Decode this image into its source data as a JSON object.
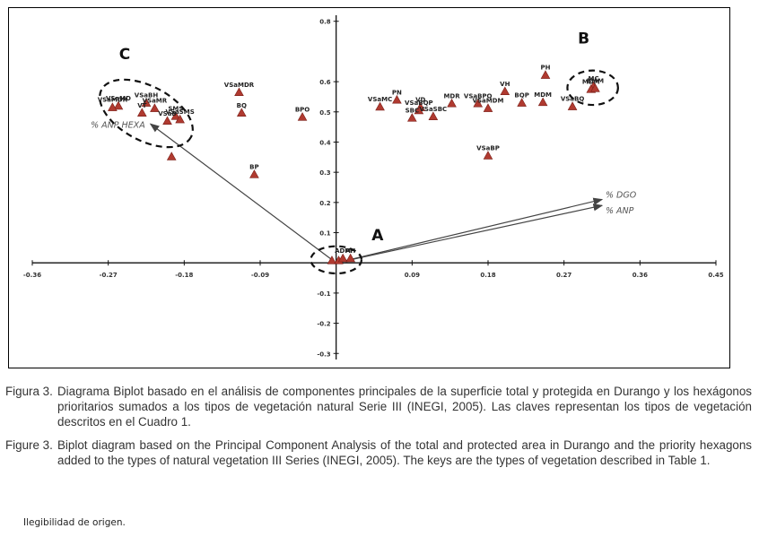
{
  "chart_data": {
    "type": "scatter",
    "subtype": "biplot",
    "xlim": [
      -0.36,
      0.45
    ],
    "ylim": [
      -0.32,
      0.82
    ],
    "x_ticks": [
      "-0.36",
      "-0.27",
      "-0.18",
      "-0.09",
      "0.09",
      "0.18",
      "0.27",
      "0.36",
      "0.45"
    ],
    "x_tick_values": [
      -0.36,
      -0.27,
      -0.18,
      -0.09,
      0.09,
      0.18,
      0.27,
      0.36,
      0.45
    ],
    "y_ticks": [
      "0.8",
      "0.6",
      "0.5",
      "0.4",
      "0.3",
      "0.2",
      "0.1",
      "-0.1",
      "-0.2",
      "-0.3"
    ],
    "y_tick_values": [
      0.8,
      0.6,
      0.5,
      0.4,
      0.3,
      0.2,
      0.1,
      -0.1,
      -0.2,
      -0.3
    ],
    "points": [
      {
        "label": "VSaMDR",
        "x": -0.115,
        "y": 0.565
      },
      {
        "label": "BQ",
        "x": -0.112,
        "y": 0.497
      },
      {
        "label": "BP",
        "x": -0.097,
        "y": 0.293
      },
      {
        "label": "BPO",
        "x": -0.04,
        "y": 0.483
      },
      {
        "label": "VSaBH",
        "x": -0.225,
        "y": 0.53
      },
      {
        "label": "VSaMR",
        "x": -0.215,
        "y": 0.512
      },
      {
        "label": "VT",
        "x": -0.23,
        "y": 0.497
      },
      {
        "label": "SMS",
        "x": -0.19,
        "y": 0.486
      },
      {
        "label": "VSaSMS",
        "x": -0.185,
        "y": 0.475
      },
      {
        "label": "VSaB",
        "x": -0.2,
        "y": 0.47
      },
      {
        "label": "VSaMD",
        "x": -0.258,
        "y": 0.52
      },
      {
        "label": "VSaMDR",
        "x": -0.265,
        "y": 0.515
      },
      {
        "label": "",
        "x": -0.195,
        "y": 0.352
      },
      {
        "label": "PN",
        "x": 0.072,
        "y": 0.54
      },
      {
        "label": "VSaMC",
        "x": 0.052,
        "y": 0.517
      },
      {
        "label": "VD",
        "x": 0.1,
        "y": 0.515
      },
      {
        "label": "VSaBQP",
        "x": 0.098,
        "y": 0.505
      },
      {
        "label": "SBC",
        "x": 0.09,
        "y": 0.48
      },
      {
        "label": "VSaSBC",
        "x": 0.115,
        "y": 0.485
      },
      {
        "label": "MDR",
        "x": 0.137,
        "y": 0.528
      },
      {
        "label": "VSaBPO",
        "x": 0.168,
        "y": 0.528
      },
      {
        "label": "VSaMDM",
        "x": 0.18,
        "y": 0.512
      },
      {
        "label": "VSaBP",
        "x": 0.18,
        "y": 0.355
      },
      {
        "label": "VH",
        "x": 0.2,
        "y": 0.568
      },
      {
        "label": "BQP",
        "x": 0.22,
        "y": 0.53
      },
      {
        "label": "MDM",
        "x": 0.245,
        "y": 0.532
      },
      {
        "label": "VSaBQ",
        "x": 0.28,
        "y": 0.518
      },
      {
        "label": "PH",
        "x": 0.248,
        "y": 0.622
      },
      {
        "label": "MC",
        "x": 0.305,
        "y": 0.585
      },
      {
        "label": "MDM",
        "x": 0.302,
        "y": 0.575
      },
      {
        "label": "BMM",
        "x": 0.307,
        "y": 0.578
      },
      {
        "label": "",
        "x": -0.005,
        "y": 0.008
      },
      {
        "label": "",
        "x": 0.003,
        "y": 0.008
      },
      {
        "label": "ADM",
        "x": 0.008,
        "y": 0.015
      },
      {
        "label": "AH",
        "x": 0.017,
        "y": 0.015
      }
    ],
    "vectors": [
      {
        "label": "% ANP HEXA",
        "x": -0.22,
        "y": 0.46
      },
      {
        "label": "% DGO",
        "x": 0.315,
        "y": 0.21
      },
      {
        "label": "% ANP",
        "x": 0.315,
        "y": 0.19
      }
    ],
    "groups": [
      {
        "label": "A",
        "cx": 0.0,
        "cy": 0.01,
        "rx": 0.03,
        "ry": 0.045
      },
      {
        "label": "B",
        "cx": 0.304,
        "cy": 0.58,
        "rx": 0.03,
        "ry": 0.057
      },
      {
        "label": "C",
        "cx": -0.225,
        "cy": 0.495,
        "rx": 0.06,
        "ry": 0.09
      }
    ]
  },
  "caption_es": {
    "label": "Figura 3.",
    "text": "Diagrama Biplot basado en el análisis de componentes principales de la superficie total y protegida en Durango y los hexágonos prioritarios sumados a los tipos de vegetación natural Serie III (INEGI, 2005). Las claves representan los tipos de vegetación descritos en el Cuadro 1."
  },
  "caption_en": {
    "label": "Figure 3.",
    "text": "Biplot diagram based on the Principal Component Analysis of the total and protected area in Durango and the priority hexagons added to the types of natural vegetation III Series (INEGI, 2005). The keys are the types of vegetation described in Table 1."
  },
  "source_note": "Ilegibilidad de origen."
}
